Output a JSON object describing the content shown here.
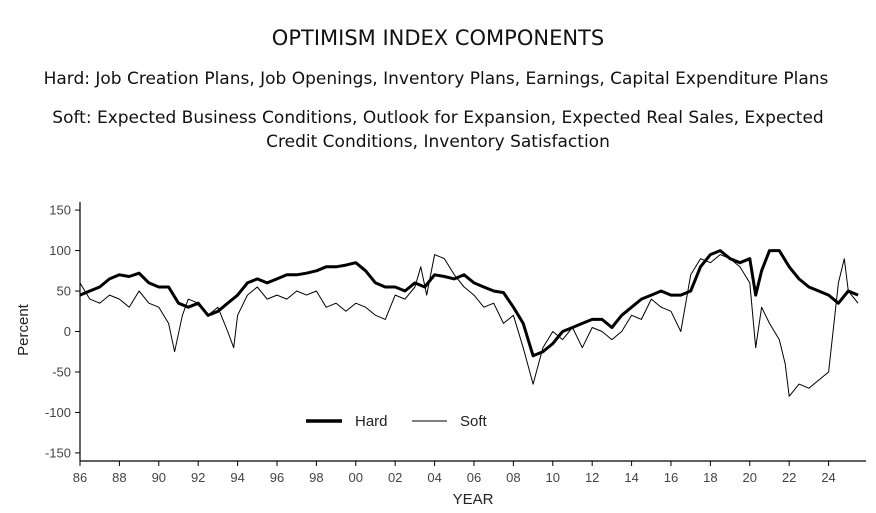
{
  "chart_data": {
    "type": "line",
    "title": "OPTIMISM INDEX COMPONENTS",
    "subtitle_hard": "Hard: Job Creation Plans, Job Openings, Inventory Plans, Earnings, Capital Expenditure Plans",
    "subtitle_soft_line1": "Soft: Expected Business Conditions, Outlook for Expansion, Expected Real Sales, Expected",
    "subtitle_soft_line2": "Credit Conditions, Inventory Satisfaction",
    "xlabel": "YEAR",
    "ylabel": "Percent",
    "ylim": [
      -160,
      160
    ],
    "xlim": [
      1986,
      2025.9
    ],
    "y_ticks": [
      150,
      100,
      50,
      0,
      -50,
      -100,
      -150
    ],
    "x_ticks": [
      1986,
      1988,
      1990,
      1992,
      1994,
      1996,
      1998,
      2000,
      2002,
      2004,
      2006,
      2008,
      2010,
      2012,
      2014,
      2016,
      2018,
      2020,
      2022,
      2024
    ],
    "x_tick_labels": [
      "86",
      "88",
      "90",
      "92",
      "94",
      "96",
      "98",
      "00",
      "02",
      "04",
      "06",
      "08",
      "10",
      "12",
      "14",
      "16",
      "18",
      "20",
      "22",
      "24"
    ],
    "legend": {
      "position": "bottom-center-inside",
      "entries": [
        "Hard",
        "Soft"
      ]
    },
    "series": [
      {
        "name": "Hard",
        "x": [
          1986.0,
          1986.5,
          1987.0,
          1987.5,
          1988.0,
          1988.5,
          1989.0,
          1989.5,
          1990.0,
          1990.5,
          1991.0,
          1991.5,
          1992.0,
          1992.5,
          1993.0,
          1993.5,
          1994.0,
          1994.5,
          1995.0,
          1995.5,
          1996.0,
          1996.5,
          1997.0,
          1997.5,
          1998.0,
          1998.5,
          1999.0,
          1999.5,
          2000.0,
          2000.5,
          2001.0,
          2001.5,
          2002.0,
          2002.5,
          2003.0,
          2003.5,
          2004.0,
          2004.5,
          2005.0,
          2005.5,
          2006.0,
          2006.5,
          2007.0,
          2007.5,
          2008.0,
          2008.5,
          2009.0,
          2009.5,
          2010.0,
          2010.5,
          2011.0,
          2011.5,
          2012.0,
          2012.5,
          2013.0,
          2013.5,
          2014.0,
          2014.5,
          2015.0,
          2015.5,
          2016.0,
          2016.5,
          2017.0,
          2017.5,
          2018.0,
          2018.5,
          2019.0,
          2019.5,
          2020.0,
          2020.3,
          2020.6,
          2021.0,
          2021.5,
          2022.0,
          2022.5,
          2023.0,
          2023.5,
          2024.0,
          2024.5,
          2025.0,
          2025.5
        ],
        "values": [
          45,
          50,
          55,
          65,
          70,
          68,
          72,
          60,
          55,
          55,
          35,
          30,
          35,
          20,
          25,
          35,
          45,
          60,
          65,
          60,
          65,
          70,
          70,
          72,
          75,
          80,
          80,
          82,
          85,
          75,
          60,
          55,
          55,
          50,
          60,
          55,
          70,
          68,
          65,
          70,
          60,
          55,
          50,
          48,
          30,
          10,
          -30,
          -25,
          -15,
          0,
          5,
          10,
          15,
          15,
          5,
          20,
          30,
          40,
          45,
          50,
          45,
          45,
          50,
          80,
          95,
          100,
          90,
          85,
          90,
          45,
          75,
          100,
          100,
          80,
          65,
          55,
          50,
          45,
          35,
          50,
          45
        ]
      },
      {
        "name": "Soft",
        "x": [
          1986.0,
          1986.5,
          1987.0,
          1987.5,
          1988.0,
          1988.5,
          1989.0,
          1989.5,
          1990.0,
          1990.5,
          1990.8,
          1991.2,
          1991.5,
          1992.0,
          1992.5,
          1993.0,
          1993.5,
          1993.8,
          1994.0,
          1994.5,
          1995.0,
          1995.5,
          1996.0,
          1996.5,
          1997.0,
          1997.5,
          1998.0,
          1998.5,
          1999.0,
          1999.5,
          2000.0,
          2000.5,
          2001.0,
          2001.5,
          2002.0,
          2002.5,
          2003.0,
          2003.3,
          2003.6,
          2004.0,
          2004.5,
          2005.0,
          2005.5,
          2006.0,
          2006.5,
          2007.0,
          2007.5,
          2008.0,
          2008.5,
          2009.0,
          2009.5,
          2010.0,
          2010.5,
          2011.0,
          2011.5,
          2012.0,
          2012.5,
          2013.0,
          2013.5,
          2014.0,
          2014.5,
          2015.0,
          2015.5,
          2016.0,
          2016.5,
          2017.0,
          2017.5,
          2018.0,
          2018.5,
          2019.0,
          2019.5,
          2020.0,
          2020.3,
          2020.6,
          2021.0,
          2021.5,
          2021.8,
          2022.0,
          2022.5,
          2023.0,
          2023.5,
          2024.0,
          2024.5,
          2024.8,
          2025.0,
          2025.5
        ],
        "values": [
          60,
          40,
          35,
          45,
          40,
          30,
          50,
          35,
          30,
          10,
          -25,
          20,
          40,
          35,
          20,
          30,
          0,
          -20,
          20,
          45,
          55,
          40,
          45,
          40,
          50,
          45,
          50,
          30,
          35,
          25,
          35,
          30,
          20,
          15,
          45,
          40,
          55,
          80,
          45,
          95,
          90,
          70,
          55,
          45,
          30,
          35,
          10,
          20,
          -20,
          -65,
          -20,
          0,
          -10,
          5,
          -20,
          5,
          0,
          -10,
          0,
          20,
          15,
          40,
          30,
          25,
          0,
          70,
          90,
          85,
          95,
          90,
          80,
          60,
          -20,
          30,
          10,
          -10,
          -40,
          -80,
          -65,
          -70,
          -60,
          -50,
          60,
          90,
          50,
          35
        ]
      }
    ]
  }
}
